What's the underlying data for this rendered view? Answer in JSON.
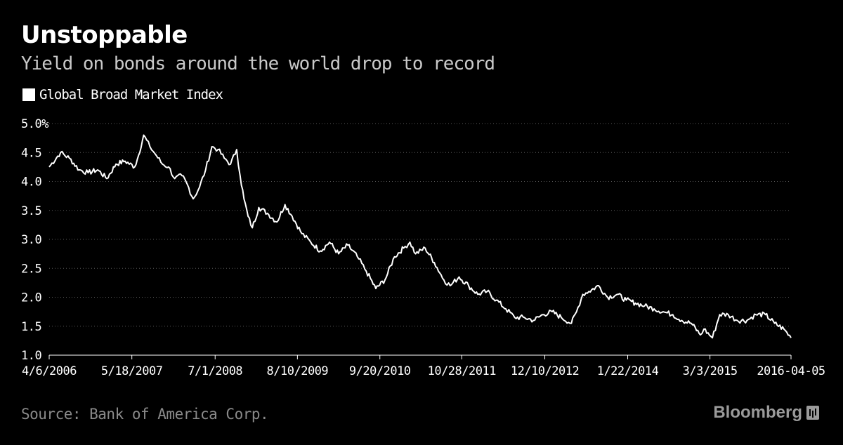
{
  "header": {
    "title": "Unstoppable",
    "subtitle": "Yield on bonds around the world drop to record"
  },
  "legend": {
    "label": "Global Broad Market Index",
    "color": "#ffffff"
  },
  "footer": {
    "source": "Source: Bank of America Corp.",
    "brand": "Bloomberg"
  },
  "chart_data": {
    "type": "line",
    "title": "Unstoppable",
    "subtitle": "Yield on bonds around the world drop to record",
    "xlabel": "",
    "ylabel": "",
    "ylim": [
      1.0,
      5.0
    ],
    "y_ticks": [
      "5.0%",
      "4.5",
      "4.0",
      "3.5",
      "3.0",
      "2.5",
      "2.0",
      "1.5",
      "1.0"
    ],
    "y_tick_values": [
      5.0,
      4.5,
      4.0,
      3.5,
      3.0,
      2.5,
      2.0,
      1.5,
      1.0
    ],
    "x_ticks": [
      "4/6/2006",
      "5/18/2007",
      "7/1/2008",
      "8/10/2009",
      "9/20/2010",
      "10/28/2011",
      "12/10/2012",
      "1/22/2014",
      "3/3/2015",
      "2016-04-05"
    ],
    "x_tick_dates": [
      "2006-04-06",
      "2007-05-18",
      "2008-07-01",
      "2009-08-10",
      "2010-09-20",
      "2011-10-28",
      "2012-12-10",
      "2014-01-22",
      "2015-03-03",
      "2016-04-05"
    ],
    "xlim": [
      "2006-04-06",
      "2016-04-05"
    ],
    "grid": true,
    "legend_position": "top-left",
    "series": [
      {
        "name": "Global Broad Market Index",
        "color": "#ffffff",
        "x": [
          "2006-04-06",
          "2006-06-01",
          "2006-07-15",
          "2006-09-01",
          "2006-10-15",
          "2006-12-01",
          "2007-01-15",
          "2007-03-01",
          "2007-04-15",
          "2007-06-01",
          "2007-06-20",
          "2007-07-15",
          "2007-08-15",
          "2007-09-15",
          "2007-10-15",
          "2007-11-15",
          "2007-12-15",
          "2008-01-20",
          "2008-02-15",
          "2008-03-15",
          "2008-04-15",
          "2008-05-15",
          "2008-06-15",
          "2008-07-15",
          "2008-08-15",
          "2008-09-15",
          "2008-10-15",
          "2008-11-01",
          "2008-11-20",
          "2008-12-10",
          "2008-12-31",
          "2009-02-01",
          "2009-03-15",
          "2009-05-01",
          "2009-06-10",
          "2009-07-15",
          "2009-09-01",
          "2009-10-15",
          "2009-12-01",
          "2010-01-15",
          "2010-03-01",
          "2010-04-15",
          "2010-06-01",
          "2010-07-15",
          "2010-08-31",
          "2010-10-15",
          "2010-12-01",
          "2011-01-15",
          "2011-02-15",
          "2011-03-15",
          "2011-05-01",
          "2011-06-15",
          "2011-08-01",
          "2011-09-01",
          "2011-10-15",
          "2011-12-01",
          "2012-01-15",
          "2012-03-01",
          "2012-04-15",
          "2012-06-01",
          "2012-07-15",
          "2012-09-01",
          "2012-10-15",
          "2012-12-01",
          "2013-01-15",
          "2013-03-01",
          "2013-04-20",
          "2013-05-15",
          "2013-06-15",
          "2013-07-15",
          "2013-09-01",
          "2013-10-15",
          "2013-12-01",
          "2014-01-15",
          "2014-03-01",
          "2014-04-15",
          "2014-06-01",
          "2014-07-15",
          "2014-09-01",
          "2014-10-15",
          "2014-12-01",
          "2015-01-15",
          "2015-02-01",
          "2015-03-15",
          "2015-04-20",
          "2015-06-01",
          "2015-07-15",
          "2015-09-01",
          "2015-10-15",
          "2015-12-01",
          "2016-01-15",
          "2016-03-01",
          "2016-04-05"
        ],
        "y": [
          4.25,
          4.5,
          4.4,
          4.2,
          4.15,
          4.2,
          4.05,
          4.3,
          4.35,
          4.25,
          4.45,
          4.8,
          4.6,
          4.45,
          4.3,
          4.25,
          4.05,
          4.1,
          3.95,
          3.7,
          3.9,
          4.2,
          4.6,
          4.55,
          4.4,
          4.3,
          4.55,
          4.1,
          3.7,
          3.4,
          3.2,
          3.55,
          3.45,
          3.3,
          3.6,
          3.4,
          3.1,
          2.95,
          2.8,
          2.95,
          2.75,
          2.9,
          2.7,
          2.45,
          2.15,
          2.3,
          2.7,
          2.85,
          2.95,
          2.75,
          2.85,
          2.6,
          2.3,
          2.2,
          2.35,
          2.2,
          2.05,
          2.1,
          1.95,
          1.8,
          1.65,
          1.65,
          1.6,
          1.7,
          1.75,
          1.65,
          1.55,
          1.75,
          2.05,
          2.1,
          2.2,
          2.0,
          2.05,
          1.95,
          1.9,
          1.85,
          1.8,
          1.75,
          1.7,
          1.6,
          1.55,
          1.35,
          1.45,
          1.3,
          1.7,
          1.7,
          1.6,
          1.6,
          1.7,
          1.7,
          1.55,
          1.45,
          1.3
        ]
      }
    ]
  }
}
